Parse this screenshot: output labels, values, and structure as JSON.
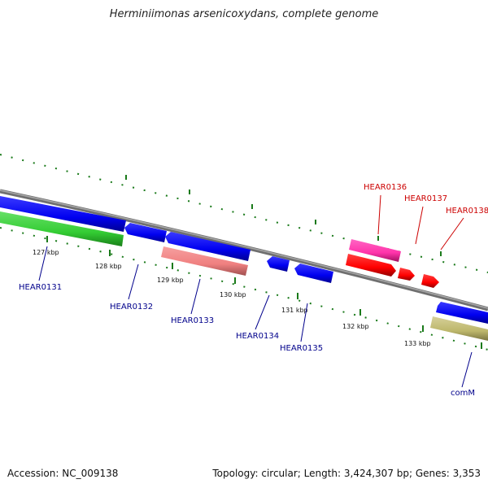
{
  "title": "Herminiimonas arsenicoxydans, complete genome",
  "accession_text": "Accession: NC_009138",
  "topology_text": "Topology: circular; Length: 3,424,307 bp; Genes: 3,353",
  "kbp_labels": [
    "127 kbp",
    "128 kbp",
    "129 kbp",
    "130 kbp",
    "131 kbp",
    "132 kbp",
    "133 kbp"
  ],
  "gene_labels": [
    "HEAR0131",
    "HEAR0132",
    "HEAR0133",
    "HEAR0134",
    "HEAR0135",
    "HEAR0136",
    "HEAR0137",
    "HEAR0138",
    "comM"
  ],
  "colors": {
    "backbone": "#808080",
    "tick": "#1a7a1a",
    "gene_blue": "#0000ff",
    "gene_green": "#33cc33",
    "gene_salmon": "#f08080",
    "gene_pink": "#ff33aa",
    "gene_red": "#ff0000",
    "gene_olive": "#bdb76b",
    "label_blue": "#00008b",
    "label_red": "#cc0000"
  }
}
